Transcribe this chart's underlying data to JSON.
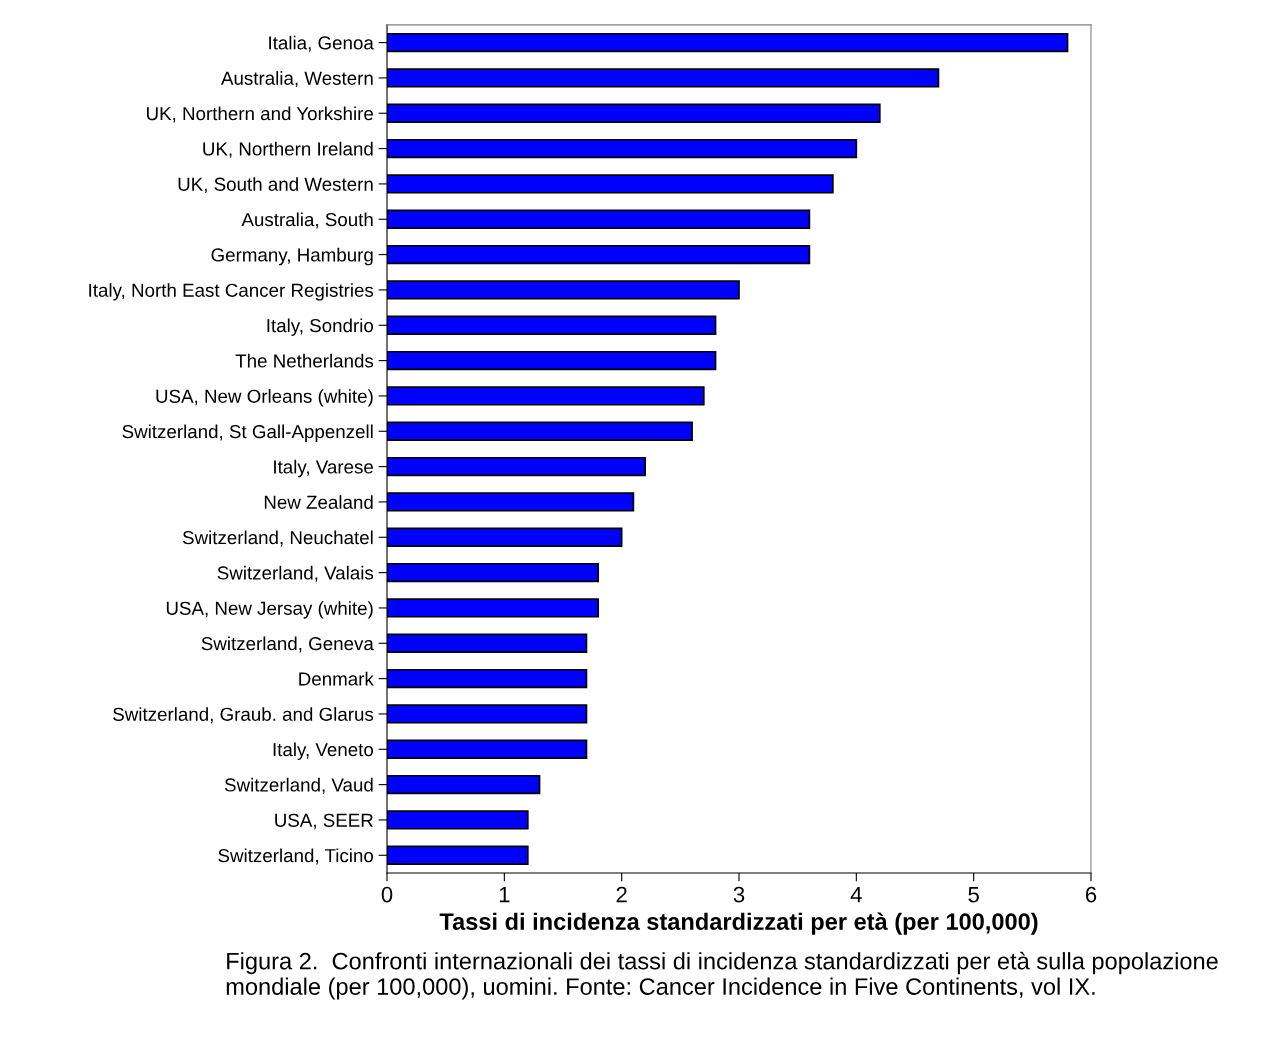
{
  "chart_data": {
    "type": "bar",
    "orientation": "horizontal",
    "xlabel": "Tassi di incidenza standardizzati per età (per 100,000)",
    "categories": [
      "Italia, Genoa",
      "Australia, Western",
      "UK, Northern and Yorkshire",
      "UK, Northern Ireland",
      "UK, South and Western",
      "Australia, South",
      "Germany, Hamburg",
      "Italy, North East Cancer Registries",
      "Italy, Sondrio",
      "The Netherlands",
      "USA, New Orleans (white)",
      "Switzerland, St Gall-Appenzell",
      "Italy, Varese",
      "New Zealand",
      "Switzerland, Neuchatel",
      "Switzerland, Valais",
      "USA, New Jersay (white)",
      "Switzerland, Geneva",
      "Denmark",
      "Switzerland, Graub. and Glarus",
      "Italy, Veneto",
      "Switzerland, Vaud",
      "USA, SEER",
      "Switzerland, Ticino"
    ],
    "values": [
      5.8,
      4.7,
      4.2,
      4.0,
      3.8,
      3.6,
      3.6,
      3.0,
      2.8,
      2.8,
      2.7,
      2.6,
      2.2,
      2.1,
      2.0,
      1.8,
      1.8,
      1.7,
      1.7,
      1.7,
      1.7,
      1.3,
      1.2,
      1.2
    ],
    "color": "#0000ff",
    "xlim": [
      0,
      6
    ],
    "xticks": [
      0,
      1,
      2,
      3,
      4,
      5,
      6
    ],
    "grid": false,
    "legend": false,
    "annotations": [
      "Figura 2.  Confronti internazionali dei tassi di incidenza standardizzati per età sulla popolazione mondiale (per 100,000), uomini. Fonte: Cancer Incidence in Five Continents, vol IX."
    ]
  }
}
